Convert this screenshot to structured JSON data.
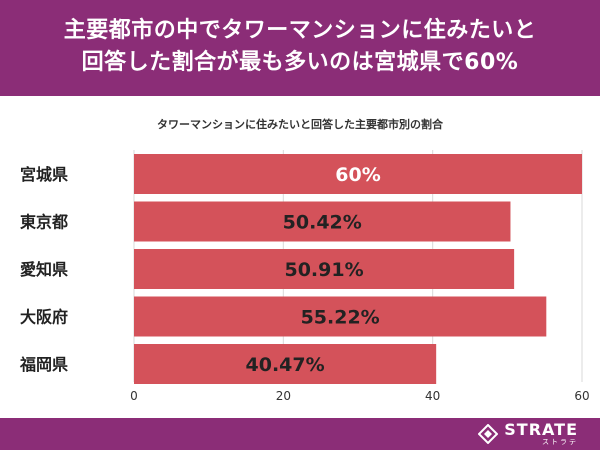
{
  "header": {
    "line1": "主要都市の中でタワーマンションに住みたいと",
    "line2": "回答した割合が最も多いのは宮城県で60%"
  },
  "chart_data": {
    "type": "bar",
    "orientation": "horizontal",
    "title": "タワーマンションに住みたいと回答した主要都市別の割合",
    "categories": [
      "宮城県",
      "東京都",
      "愛知県",
      "大阪府",
      "福岡県"
    ],
    "values": [
      60,
      50.42,
      50.91,
      55.22,
      40.47
    ],
    "data_labels": [
      "60%",
      "50.42%",
      "50.91%",
      "55.22%",
      "40.47%"
    ],
    "xlim": [
      0,
      60
    ],
    "xticks": [
      "0",
      "20",
      "40",
      "60"
    ],
    "grid": "vertical",
    "bar_color": "#d4525a"
  },
  "footer": {
    "logo_main": "STRATE",
    "logo_sub": "ストラテ"
  }
}
